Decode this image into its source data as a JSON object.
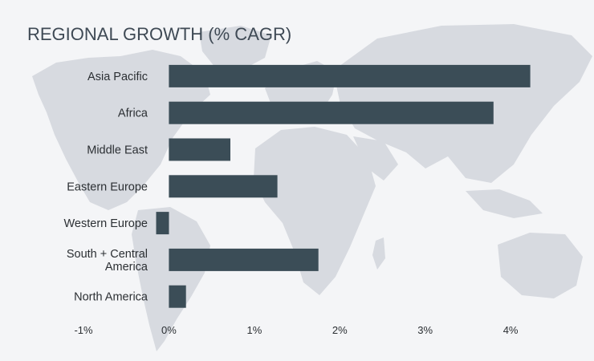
{
  "chart_data": {
    "type": "bar",
    "orientation": "horizontal",
    "title": "REGIONAL GROWTH (% CAGR)",
    "xlabel": "",
    "ylabel": "",
    "categories": [
      "Asia Pacific",
      "Africa",
      "Middle East",
      "Eastern Europe",
      "Western Europe",
      "South + Central America",
      "North America"
    ],
    "category_lines": [
      [
        "Asia Pacific"
      ],
      [
        "Africa"
      ],
      [
        "Middle East"
      ],
      [
        "Eastern Europe"
      ],
      [
        "Western Europe"
      ],
      [
        "South + Central",
        "America"
      ],
      [
        "North America"
      ]
    ],
    "values": [
      4.23,
      3.8,
      0.72,
      1.27,
      -0.15,
      1.75,
      0.2
    ],
    "xlim": [
      -1,
      4.6
    ],
    "xticks": [
      -1,
      0,
      1,
      2,
      3,
      4
    ],
    "xtick_labels": [
      "-1%",
      "0%",
      "1%",
      "2%",
      "3%",
      "4%"
    ],
    "grid": false,
    "legend": "none",
    "colors": {
      "bar": "#3b4d57",
      "map": "#d7dae0",
      "background": "#f4f5f7",
      "title": "#3f4a55",
      "text": "#2b2f33"
    }
  }
}
